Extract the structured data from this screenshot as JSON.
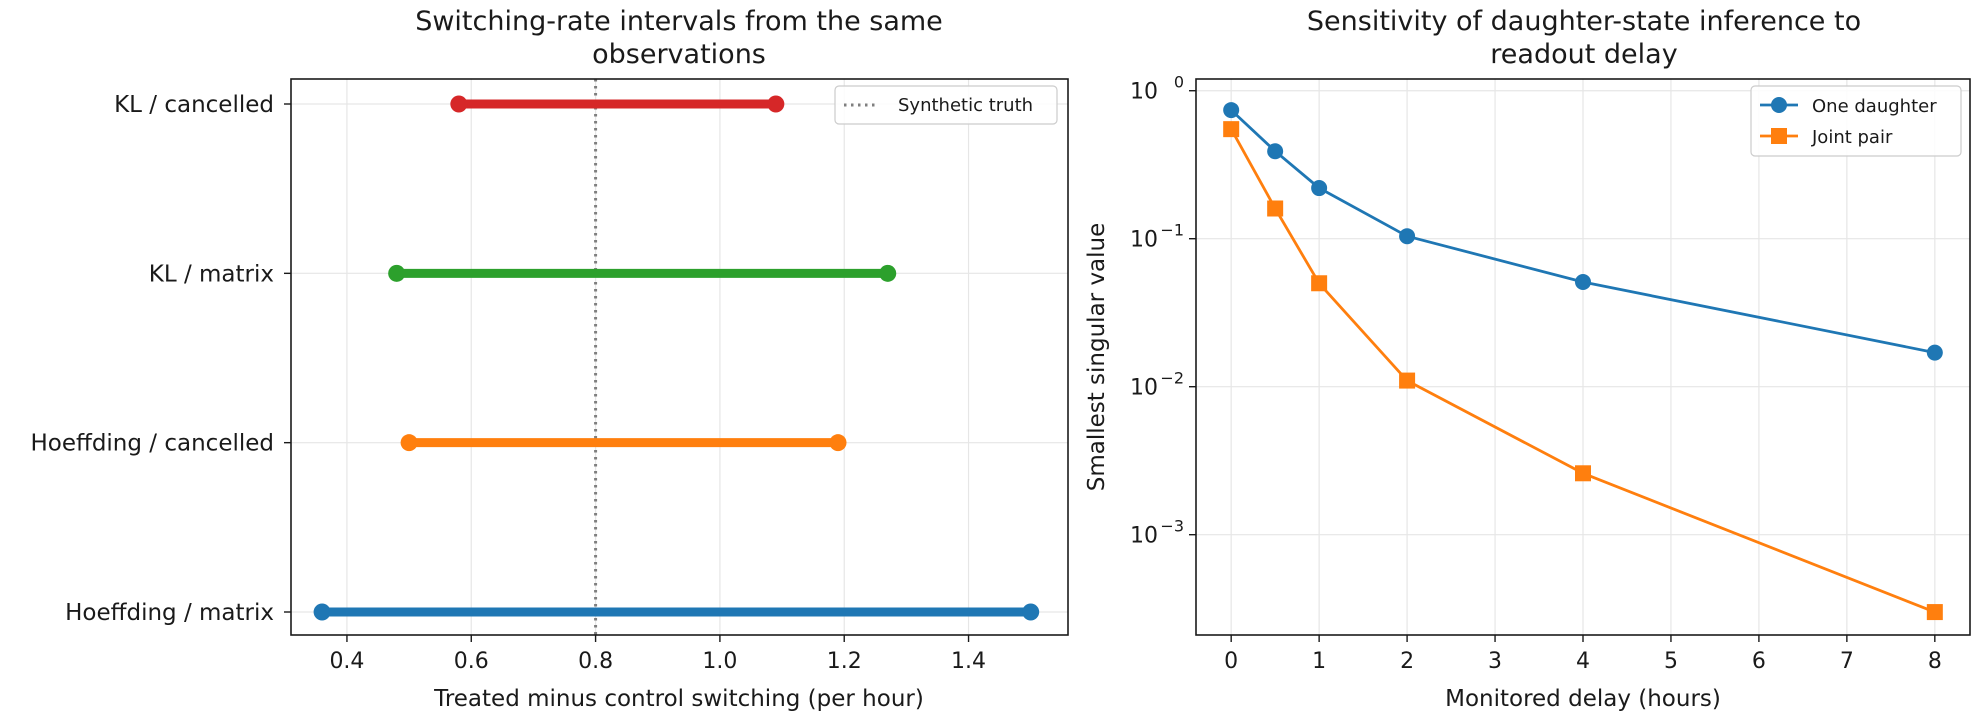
{
  "chart_data": [
    {
      "type": "interval",
      "title_lines": [
        "Switching-rate intervals from the same",
        "observations"
      ],
      "xlabel": "Treated minus control switching (per hour)",
      "xlim": [
        0.31,
        1.56
      ],
      "xticks": [
        0.4,
        0.6,
        0.8,
        1.0,
        1.2,
        1.4
      ],
      "xtick_labels": [
        "0.4",
        "0.6",
        "0.8",
        "1.0",
        "1.2",
        "1.4"
      ],
      "grid": true,
      "reference": {
        "label": "Synthetic truth",
        "x": 0.8,
        "style": "dotted",
        "color": "#7f7f7f"
      },
      "legend_placement": "top-right",
      "intervals": [
        {
          "label": "KL / cancelled",
          "low": 0.58,
          "high": 1.09,
          "color": "#d62728"
        },
        {
          "label": "KL / matrix",
          "low": 0.48,
          "high": 1.27,
          "color": "#2ca02c"
        },
        {
          "label": "Hoeffding / cancelled",
          "low": 0.5,
          "high": 1.19,
          "color": "#ff7f0e"
        },
        {
          "label": "Hoeffding / matrix",
          "low": 0.36,
          "high": 1.5,
          "color": "#1f77b4"
        }
      ]
    },
    {
      "type": "line",
      "title_lines": [
        "Sensitivity of daughter-state inference to",
        "readout delay"
      ],
      "xlabel": "Monitored delay (hours)",
      "ylabel": "Smallest singular value",
      "yscale": "log",
      "xlim": [
        -0.4,
        8.4
      ],
      "ylim": [
        0.00021,
        1.2
      ],
      "xticks": [
        0,
        1,
        2,
        3,
        4,
        5,
        6,
        7,
        8
      ],
      "xtick_labels": [
        "0",
        "1",
        "2",
        "3",
        "4",
        "5",
        "6",
        "7",
        "8"
      ],
      "yticks_exp": [
        -3,
        -2,
        -1,
        0
      ],
      "ytick_base": "10",
      "ytick_exps": [
        "−3",
        "−2",
        "−1",
        "0"
      ],
      "grid": true,
      "legend_placement": "top-right",
      "x": [
        0,
        0.5,
        1,
        2,
        4,
        8
      ],
      "series": [
        {
          "name": "One daughter",
          "marker": "circle",
          "color": "#1f77b4",
          "values": [
            0.74,
            0.39,
            0.22,
            0.104,
            0.051,
            0.017
          ]
        },
        {
          "name": "Joint pair",
          "marker": "square",
          "color": "#ff7f0e",
          "values": [
            0.55,
            0.16,
            0.05,
            0.011,
            0.0026,
            0.0003
          ]
        }
      ]
    }
  ]
}
